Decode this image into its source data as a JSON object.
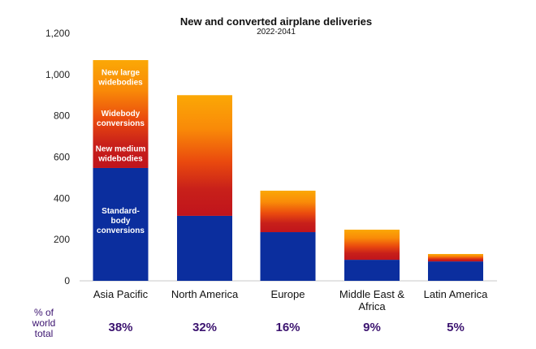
{
  "chart_data": {
    "type": "bar",
    "stacked": true,
    "title": "New and converted airplane deliveries",
    "subtitle": "2022-2041",
    "xlabel": "",
    "ylabel": "",
    "ylim": [
      0,
      1200
    ],
    "yticks": [
      0,
      200,
      400,
      600,
      800,
      1000,
      1200
    ],
    "ytick_labels": [
      "0",
      "200",
      "400",
      "600",
      "800",
      "1,000",
      "1,200"
    ],
    "grid": false,
    "categories": [
      "Asia Pacific",
      "North America",
      "Europe",
      "Middle East & Africa",
      "Latin America"
    ],
    "category_label_lines": [
      [
        "Asia Pacific"
      ],
      [
        "North America"
      ],
      [
        "Europe"
      ],
      [
        "Middle East &",
        "Africa"
      ],
      [
        "Latin America"
      ]
    ],
    "series": [
      {
        "name": "Standard-body conversions",
        "color": "#0b2e9e",
        "values": [
          547,
          315,
          236,
          102,
          94
        ]
      },
      {
        "name": "New medium widebodies / Widebody conversions / New large widebodies",
        "gradient": [
          "#c0141c",
          "#e8440e",
          "#f87a08",
          "#fba806"
        ],
        "values": [
          523,
          585,
          201,
          146,
          36
        ]
      }
    ],
    "totals": [
      1070,
      900,
      437,
      248,
      130
    ],
    "segment_annotations": [
      {
        "lines": [
          "New large",
          "widebodies"
        ],
        "value": 990
      },
      {
        "lines": [
          "Widebody",
          "conversions"
        ],
        "value": 790
      },
      {
        "lines": [
          "New medium",
          "widebodies"
        ],
        "value": 620
      },
      {
        "lines": [
          "Standard-",
          "body",
          "conversions"
        ],
        "value": 295
      }
    ],
    "share_label_lines": [
      "% of",
      "world",
      "total"
    ],
    "share_values": [
      "38%",
      "32%",
      "16%",
      "9%",
      "5%"
    ],
    "share_color": "#3c1470"
  }
}
